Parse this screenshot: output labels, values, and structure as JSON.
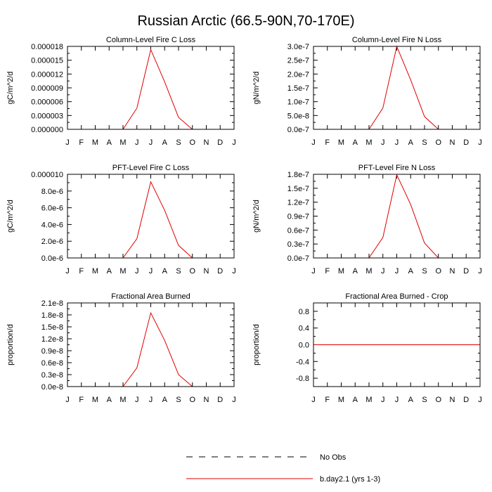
{
  "title": "Russian Arctic (66.5-90N,70-170E)",
  "months": [
    "J",
    "F",
    "M",
    "A",
    "M",
    "J",
    "J",
    "A",
    "S",
    "O",
    "N",
    "D",
    "J"
  ],
  "colors": {
    "model_line": "#e00000",
    "obs_line": "#000000",
    "frame": "#000000"
  },
  "legend": {
    "obs_label": "No Obs",
    "model_label": "b.day2.1 (yrs 1-3)"
  },
  "chart_data": [
    {
      "type": "line",
      "title": "Column-Level Fire C Loss",
      "ylabel": "gC/m^2/d",
      "xlabel": "",
      "ylim": [
        0,
        1.8e-05
      ],
      "yticks": [
        0,
        3e-06,
        6e-06,
        9e-06,
        1.2e-05,
        1.5e-05,
        1.8e-05
      ],
      "ytick_labels": [
        "0.000000",
        "0.000003",
        "0.000006",
        "0.000009",
        "0.000012",
        "0.000015",
        "0.000018"
      ],
      "series": [
        {
          "name": "b.day2.1 (yrs 1-3)",
          "values": [
            0,
            0,
            0,
            0,
            0,
            4.6e-06,
            1.73e-05,
            1.03e-05,
            2.6e-06,
            0,
            0,
            0,
            0
          ]
        }
      ]
    },
    {
      "type": "line",
      "title": "Column-Level Fire N Loss",
      "ylabel": "gN/m^2/d",
      "xlabel": "",
      "ylim": [
        0,
        3e-07
      ],
      "yticks": [
        0,
        5e-08,
        1e-07,
        1.5e-07,
        2e-07,
        2.5e-07,
        3e-07
      ],
      "ytick_labels": [
        "0.0e-7",
        "5.0e-8",
        "1.0e-7",
        "1.5e-7",
        "2.0e-7",
        "2.5e-7",
        "3.0e-7"
      ],
      "series": [
        {
          "name": "b.day2.1 (yrs 1-3)",
          "values": [
            0,
            0,
            0,
            0,
            0,
            7.7e-08,
            3e-07,
            1.79e-07,
            4.6e-08,
            0,
            0,
            0,
            0
          ]
        }
      ]
    },
    {
      "type": "line",
      "title": "PFT-Level Fire C Loss",
      "ylabel": "gC/m^2/d",
      "xlabel": "",
      "ylim": [
        0,
        1e-05
      ],
      "yticks": [
        0,
        2e-06,
        4e-06,
        6e-06,
        8e-06,
        1e-05
      ],
      "ytick_labels": [
        "0.0e-6",
        "2.0e-6",
        "4.0e-6",
        "6.0e-6",
        "8.0e-6",
        "0.000010"
      ],
      "series": [
        {
          "name": "b.day2.1 (yrs 1-3)",
          "values": [
            0,
            0,
            0,
            0,
            0,
            2.3e-06,
            9.1e-06,
            5.7e-06,
            1.5e-06,
            0,
            0,
            0,
            0
          ]
        }
      ]
    },
    {
      "type": "line",
      "title": "PFT-Level Fire N Loss",
      "ylabel": "gN/m^2/d",
      "xlabel": "",
      "ylim": [
        0,
        1.8e-07
      ],
      "yticks": [
        0,
        3e-08,
        6e-08,
        9e-08,
        1.2e-07,
        1.5e-07,
        1.8e-07
      ],
      "ytick_labels": [
        "0.0e-7",
        "0.3e-7",
        "0.6e-7",
        "0.9e-7",
        "1.2e-7",
        "1.5e-7",
        "1.8e-7"
      ],
      "series": [
        {
          "name": "b.day2.1 (yrs 1-3)",
          "values": [
            0,
            0,
            0,
            0,
            0,
            4.4e-08,
            1.79e-07,
            1.15e-07,
            3.2e-08,
            0,
            0,
            0,
            0
          ]
        }
      ]
    },
    {
      "type": "line",
      "title": "Fractional Area Burned",
      "ylabel": "proportion/d",
      "xlabel": "",
      "ylim": [
        0,
        2.1e-08
      ],
      "yticks": [
        0,
        3e-09,
        6e-09,
        9e-09,
        1.2e-08,
        1.5e-08,
        1.8e-08,
        2.1e-08
      ],
      "ytick_labels": [
        "0.0e-8",
        "0.3e-8",
        "0.6e-8",
        "0.9e-8",
        "1.2e-8",
        "1.5e-8",
        "1.8e-8",
        "2.1e-8"
      ],
      "series": [
        {
          "name": "b.day2.1 (yrs 1-3)",
          "values": [
            0,
            0,
            0,
            0,
            0,
            4.7e-09,
            1.85e-08,
            1.16e-08,
            3e-09,
            0,
            0,
            0,
            0
          ]
        }
      ]
    },
    {
      "type": "line",
      "title": "Fractional Area Burned - Crop",
      "ylabel": "proportion/d",
      "xlabel": "",
      "ylim": [
        -1.0,
        1.0
      ],
      "yticks": [
        -0.8,
        -0.4,
        0.0,
        0.4,
        0.8
      ],
      "ytick_labels": [
        "-0.8",
        "-0.4",
        "0.0",
        "0.4",
        "0.8"
      ],
      "series": [
        {
          "name": "b.day2.1 (yrs 1-3)",
          "values": [
            0,
            0,
            0,
            0,
            0,
            0,
            0,
            0,
            0,
            0,
            0,
            0,
            0
          ]
        }
      ]
    }
  ]
}
